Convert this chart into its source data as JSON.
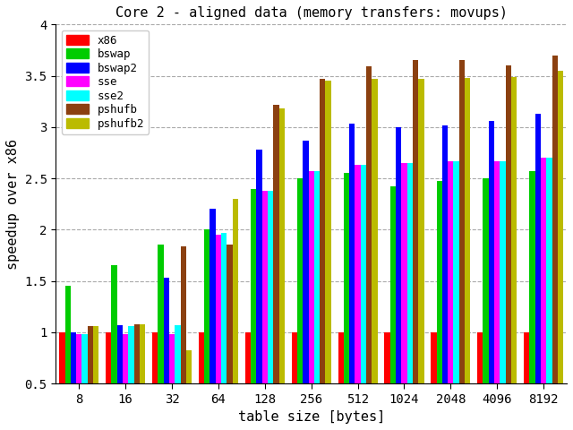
{
  "title": "Core 2 - aligned data (memory transfers: movups)",
  "xlabel": "table size [bytes]",
  "ylabel": "speedup over x86",
  "categories": [
    8,
    16,
    32,
    64,
    128,
    256,
    512,
    1024,
    2048,
    4096,
    8192
  ],
  "series": {
    "x86": [
      1.0,
      1.0,
      1.0,
      1.0,
      1.0,
      1.0,
      1.0,
      1.0,
      1.0,
      1.0,
      1.0
    ],
    "bswap": [
      1.45,
      1.65,
      1.85,
      2.0,
      2.4,
      2.5,
      2.55,
      2.42,
      2.47,
      2.5,
      2.57
    ],
    "bswap2": [
      1.0,
      1.07,
      1.53,
      2.2,
      2.78,
      2.87,
      3.03,
      3.0,
      3.02,
      3.06,
      3.13
    ],
    "sse": [
      0.98,
      0.98,
      0.98,
      1.95,
      2.38,
      2.57,
      2.63,
      2.65,
      2.67,
      2.67,
      2.7
    ],
    "sse2": [
      0.98,
      1.06,
      1.07,
      1.97,
      2.38,
      2.57,
      2.63,
      2.65,
      2.67,
      2.67,
      2.7
    ],
    "pshufb": [
      1.06,
      1.08,
      1.84,
      1.85,
      3.22,
      3.47,
      3.59,
      3.65,
      3.65,
      3.6,
      3.7
    ],
    "pshufb2": [
      1.06,
      1.08,
      0.82,
      2.3,
      3.18,
      3.45,
      3.47,
      3.47,
      3.48,
      3.49,
      3.55
    ]
  },
  "colors": {
    "x86": "#ff0000",
    "bswap": "#00cc00",
    "bswap2": "#0000ff",
    "sse": "#ff00ff",
    "sse2": "#00ffff",
    "pshufb": "#8b4010",
    "pshufb2": "#bbbb00"
  },
  "ylim": [
    0.5,
    4.0
  ],
  "yticks": [
    0.5,
    1.0,
    1.5,
    2.0,
    2.5,
    3.0,
    3.5,
    4.0
  ],
  "ytick_labels": [
    "0.5",
    "1",
    "1.5",
    "2",
    "2.5",
    "3",
    "3.5",
    "4"
  ],
  "bg_color": "#ffffff",
  "grid_color": "#aaaaaa",
  "figsize": [
    6.4,
    4.8
  ],
  "dpi": 100
}
